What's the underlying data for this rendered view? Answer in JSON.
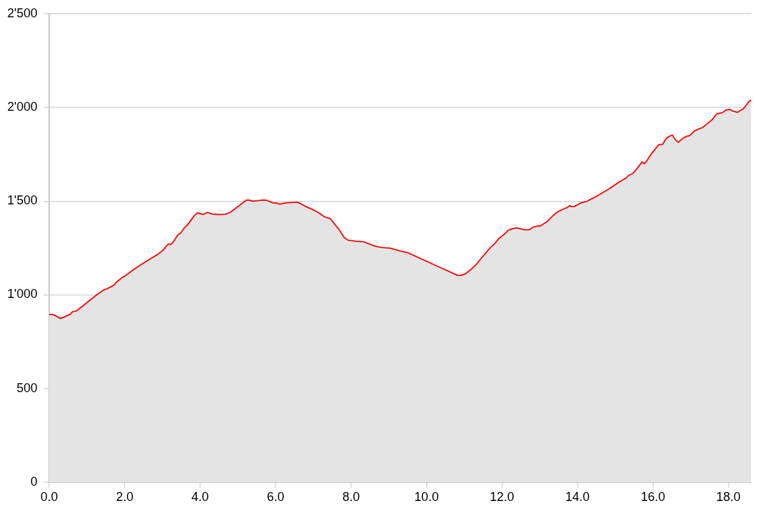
{
  "chart_data": {
    "type": "area",
    "xlim": [
      0,
      18.6
    ],
    "ylim": [
      0,
      2500
    ],
    "xticks": [
      {
        "value": 0,
        "label": "0.0"
      },
      {
        "value": 2,
        "label": "2.0"
      },
      {
        "value": 4,
        "label": "4.0"
      },
      {
        "value": 6,
        "label": "6.0"
      },
      {
        "value": 8,
        "label": "8.0"
      },
      {
        "value": 10,
        "label": "10.0"
      },
      {
        "value": 12,
        "label": "12.0"
      },
      {
        "value": 14,
        "label": "14.0"
      },
      {
        "value": 16,
        "label": "16.0"
      },
      {
        "value": 18,
        "label": "18.0"
      }
    ],
    "yticks": [
      0,
      500,
      {
        "value": 1000,
        "label": "1'000"
      },
      {
        "value": 1500,
        "label": "1'500"
      },
      {
        "value": 2000,
        "label": "2'000"
      },
      {
        "value": 2500,
        "label": "2'500"
      }
    ],
    "grid": "y",
    "marker": "none",
    "line_style": "solid",
    "series": [
      {
        "color": "#ff0000",
        "x": [
          0,
          0.1,
          0.3,
          0.44,
          0.55,
          0.62,
          0.72,
          1.27,
          1.45,
          1.54,
          1.73,
          1.76,
          1.94,
          2.0,
          2.25,
          2.43,
          2.68,
          2.86,
          3.01,
          3.15,
          3.23,
          3.3,
          3.41,
          3.48,
          3.58,
          3.66,
          3.84,
          3.93,
          4.08,
          4.19,
          4.33,
          4.51,
          4.67,
          4.79,
          5.22,
          5.28,
          5.4,
          5.68,
          5.77,
          5.92,
          6.04,
          6.1,
          6.29,
          6.59,
          6.78,
          6.96,
          7.11,
          7.3,
          7.45,
          7.67,
          7.82,
          7.91,
          8.12,
          8.34,
          8.61,
          8.8,
          9.04,
          9.29,
          9.5,
          10.33,
          10.82,
          10.91,
          11.03,
          11.16,
          11.31,
          11.46,
          11.68,
          11.8,
          11.92,
          11.98,
          12.09,
          12.17,
          12.26,
          12.38,
          12.5,
          12.6,
          12.72,
          12.81,
          12.93,
          13.02,
          13.21,
          13.33,
          13.45,
          13.57,
          13.73,
          13.79,
          13.83,
          13.91,
          14.09,
          14.25,
          14.43,
          14.83,
          15.1,
          15.29,
          15.35,
          15.47,
          15.6,
          15.71,
          15.77,
          15.84,
          15.96,
          16.15,
          16.26,
          16.34,
          16.42,
          16.51,
          16.59,
          16.67,
          16.81,
          16.91,
          16.97,
          17.1,
          17.22,
          17.31,
          17.56,
          17.69,
          17.84,
          17.91,
          18.03,
          18.1,
          18.24,
          18.4,
          18.53,
          18.6
        ],
        "values": [
          895,
          895,
          874,
          886,
          895,
          910,
          914,
          1002,
          1027,
          1033,
          1054,
          1064,
          1094,
          1100,
          1137,
          1161,
          1192,
          1214,
          1237,
          1271,
          1269,
          1286,
          1320,
          1329,
          1357,
          1372,
          1421,
          1438,
          1429,
          1440,
          1430,
          1429,
          1430,
          1439,
          1505,
          1506,
          1500,
          1506,
          1504,
          1491,
          1489,
          1484,
          1491,
          1494,
          1473,
          1457,
          1442,
          1416,
          1406,
          1351,
          1305,
          1293,
          1286,
          1283,
          1261,
          1253,
          1249,
          1234,
          1225,
          1149,
          1104,
          1104,
          1112,
          1133,
          1161,
          1198,
          1250,
          1272,
          1302,
          1310,
          1329,
          1345,
          1352,
          1357,
          1352,
          1347,
          1347,
          1360,
          1367,
          1368,
          1394,
          1418,
          1440,
          1453,
          1467,
          1476,
          1471,
          1471,
          1491,
          1499,
          1518,
          1565,
          1602,
          1624,
          1637,
          1648,
          1680,
          1709,
          1700,
          1716,
          1753,
          1801,
          1804,
          1832,
          1845,
          1853,
          1829,
          1814,
          1838,
          1847,
          1849,
          1875,
          1886,
          1892,
          1933,
          1966,
          1972,
          1984,
          1990,
          1982,
          1974,
          1994,
          2028,
          2040
        ]
      }
    ]
  }
}
